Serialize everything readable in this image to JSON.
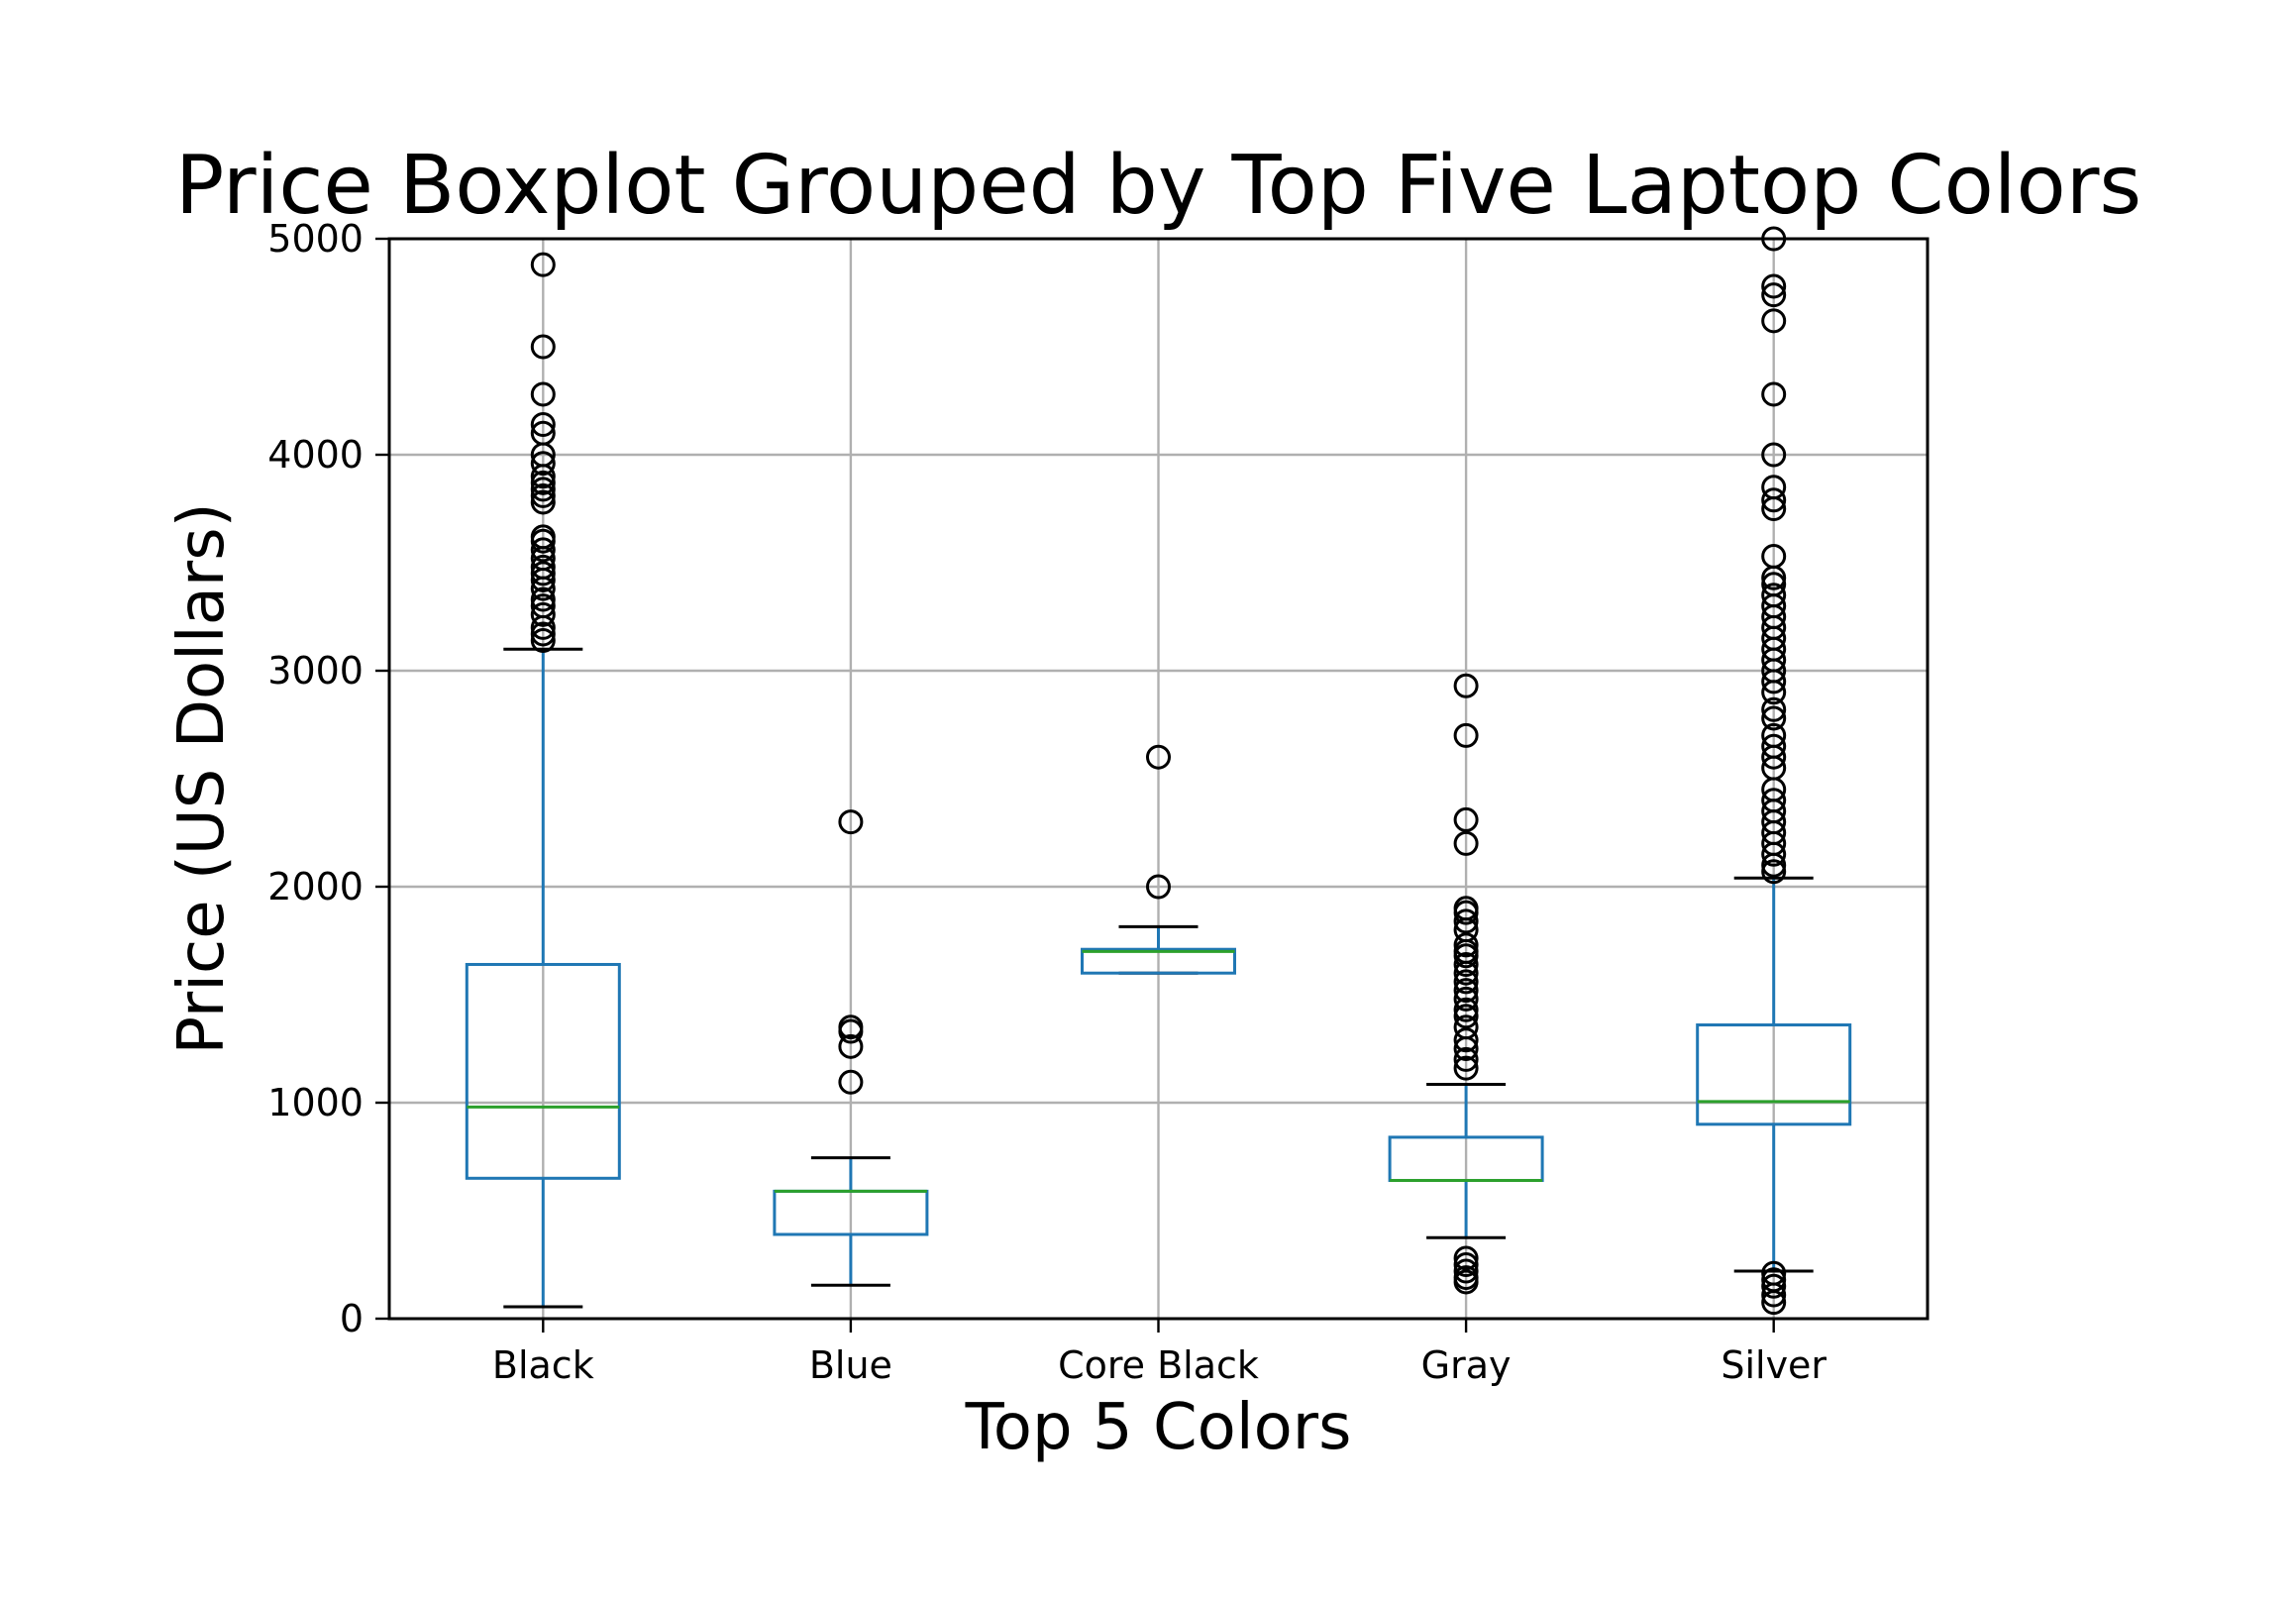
{
  "chart_data": {
    "type": "boxplot",
    "title": "Price Boxplot Grouped by Top Five Laptop Colors",
    "xlabel": "Top 5 Colors",
    "ylabel": "Price (US Dollars)",
    "ylim": [
      0,
      5000
    ],
    "yticks": [
      0,
      1000,
      2000,
      3000,
      4000,
      5000
    ],
    "grid": true,
    "categories": [
      "Black",
      "Blue",
      "Core Black",
      "Gray",
      "Silver"
    ],
    "colors": {
      "box": "#1f77b4",
      "median": "#2ca02c",
      "whisker": "#1f77b4",
      "cap": "#000000",
      "flier": "#000000",
      "grid": "#b0b0b0",
      "axes": "#000000"
    },
    "boxes": [
      {
        "category": "Black",
        "whislo": 55,
        "q1": 650,
        "med": 980,
        "q3": 1640,
        "whishi": 3100,
        "fliers": [
          3140,
          3170,
          3200,
          3260,
          3300,
          3330,
          3380,
          3420,
          3450,
          3480,
          3520,
          3560,
          3600,
          3620,
          3780,
          3810,
          3840,
          3870,
          3900,
          3960,
          4000,
          4100,
          4140,
          4280,
          4500,
          4880
        ]
      },
      {
        "category": "Blue",
        "whislo": 155,
        "q1": 390,
        "med": 590,
        "q3": 590,
        "whishi": 745,
        "fliers": [
          1095,
          1260,
          1330,
          1350,
          2300
        ]
      },
      {
        "category": "Core Black",
        "whislo": 1600,
        "q1": 1600,
        "med": 1700,
        "q3": 1710,
        "whishi": 1815,
        "fliers": [
          2000,
          2600
        ]
      },
      {
        "category": "Gray",
        "whislo": 375,
        "q1": 640,
        "med": 640,
        "q3": 840,
        "whishi": 1085,
        "fliers": [
          170,
          190,
          220,
          250,
          280,
          1160,
          1200,
          1250,
          1290,
          1350,
          1400,
          1430,
          1480,
          1520,
          1560,
          1600,
          1640,
          1680,
          1700,
          1730,
          1800,
          1840,
          1880,
          1900,
          2200,
          2310,
          2700,
          2930
        ]
      },
      {
        "category": "Silver",
        "whislo": 220,
        "q1": 900,
        "med": 1005,
        "q3": 1360,
        "whishi": 2040,
        "fliers": [
          75,
          110,
          150,
          180,
          210,
          2070,
          2100,
          2150,
          2200,
          2250,
          2300,
          2350,
          2400,
          2450,
          2550,
          2600,
          2650,
          2700,
          2780,
          2820,
          2900,
          2950,
          3000,
          3050,
          3100,
          3150,
          3200,
          3250,
          3300,
          3350,
          3400,
          3430,
          3530,
          3750,
          3790,
          3850,
          4000,
          4280,
          4620,
          4740,
          4780,
          5000
        ]
      }
    ]
  }
}
